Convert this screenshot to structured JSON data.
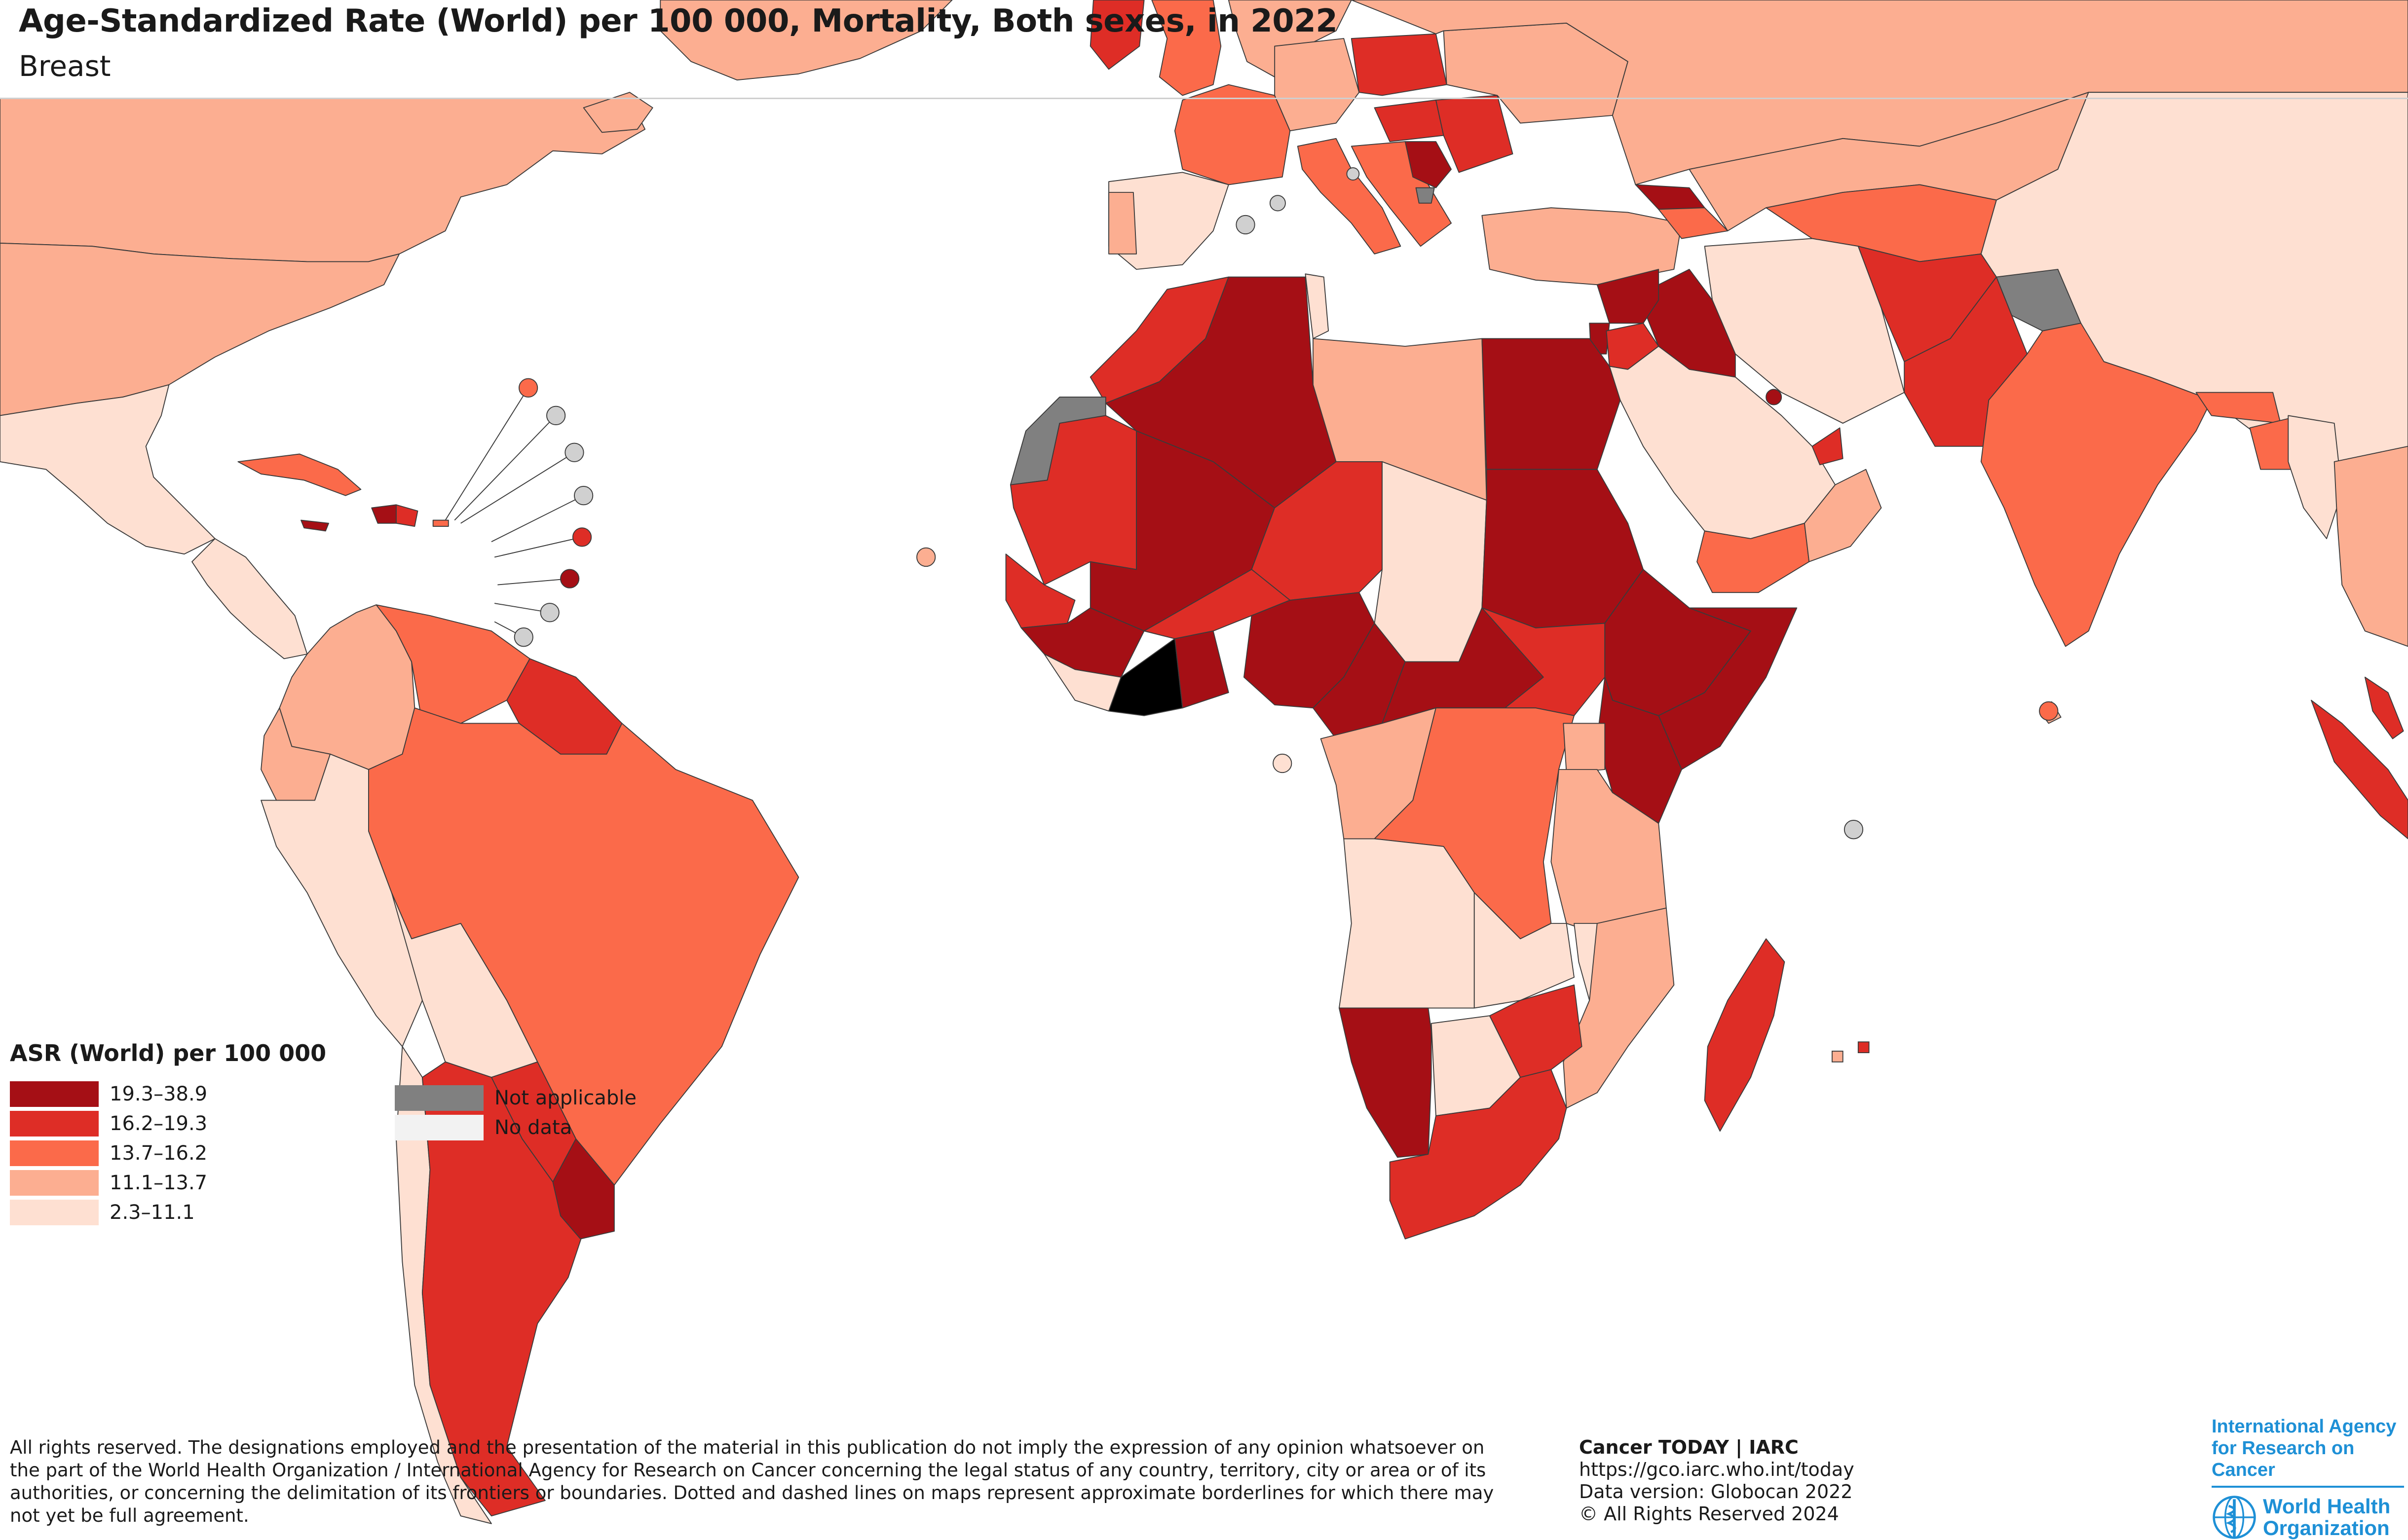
{
  "title": "Age-Standardized Rate (World) per 100 000, Mortality, Both sexes, in 2022",
  "subtitle": "Breast",
  "legend": {
    "title": "ASR (World) per 100 000",
    "classes": [
      {
        "label": "19.3–38.9",
        "color": "#a50f15"
      },
      {
        "label": "16.2–19.3",
        "color": "#de2d26"
      },
      {
        "label": "13.7–16.2",
        "color": "#fb6a4a"
      },
      {
        "label": "11.1–13.7",
        "color": "#fcae91"
      },
      {
        "label": "2.3–11.1",
        "color": "#fee0d2"
      }
    ],
    "special": [
      {
        "label": "Not applicable",
        "color": "#808080"
      },
      {
        "label": "No data",
        "color": "#f2f2f2"
      }
    ]
  },
  "small_territory_color": "#d0d0d0",
  "disclaimer": "All rights reserved. The designations employed and the presentation of the material in this publication do not imply the expression of any opinion whatsoever on the part of the World Health Organization / International Agency for Research on Cancer concerning the legal status of any country, territory, city or area or of its authorities, or concerning the delimitation of its frontiers or boundaries. Dotted and dashed lines on maps represent approximate borderlines for which there may not yet be full agreement.",
  "source": {
    "heading": "Cancer TODAY | IARC",
    "url": "https://gco.iarc.who.int/today",
    "version": "Data version: Globocan 2022",
    "copyright": "© All Rights Reserved 2024"
  },
  "logos": {
    "iarc": [
      "International Agency",
      "for Research on Cancer"
    ],
    "who": [
      "World Health",
      "Organization"
    ]
  },
  "regions": [
    {
      "name": "Canada",
      "cls": 3
    },
    {
      "name": "United States of America",
      "cls": 3
    },
    {
      "name": "Greenland",
      "cls": 3
    },
    {
      "name": "Mexico",
      "cls": 4
    },
    {
      "name": "Central America",
      "cls": 4
    },
    {
      "name": "Cuba",
      "cls": 2
    },
    {
      "name": "Haiti",
      "cls": 0
    },
    {
      "name": "Dominican Republic",
      "cls": 1
    },
    {
      "name": "Jamaica",
      "cls": 0
    },
    {
      "name": "Puerto Rico",
      "cls": 2
    },
    {
      "name": "Colombia",
      "cls": 3
    },
    {
      "name": "Venezuela",
      "cls": 2
    },
    {
      "name": "Guianas",
      "cls": 1
    },
    {
      "name": "Ecuador",
      "cls": 3
    },
    {
      "name": "Peru",
      "cls": 4
    },
    {
      "name": "Brazil",
      "cls": 2
    },
    {
      "name": "Bolivia",
      "cls": 4
    },
    {
      "name": "Paraguay",
      "cls": 1
    },
    {
      "name": "Chile",
      "cls": 4
    },
    {
      "name": "Argentina",
      "cls": 1
    },
    {
      "name": "Uruguay",
      "cls": 0
    },
    {
      "name": "Iceland",
      "cls": 3
    },
    {
      "name": "Ireland",
      "cls": 1
    },
    {
      "name": "United Kingdom",
      "cls": 2
    },
    {
      "name": "Scandinavia",
      "cls": 3
    },
    {
      "name": "France",
      "cls": 2
    },
    {
      "name": "Spain",
      "cls": 4
    },
    {
      "name": "Portugal",
      "cls": 3
    },
    {
      "name": "Germany",
      "cls": 3
    },
    {
      "name": "Poland",
      "cls": 1
    },
    {
      "name": "Italy",
      "cls": 2
    },
    {
      "name": "Balkans",
      "cls": 2
    },
    {
      "name": "Hungary",
      "cls": 1
    },
    {
      "name": "Romania",
      "cls": 1
    },
    {
      "name": "Serbia",
      "cls": 0
    },
    {
      "name": "Kosovo",
      "cls": 5
    },
    {
      "name": "Ukraine",
      "cls": 3
    },
    {
      "name": "Russian Federation",
      "cls": 3
    },
    {
      "name": "Turkey",
      "cls": 3
    },
    {
      "name": "Georgia",
      "cls": 0
    },
    {
      "name": "Armenia & Azerbaijan",
      "cls": 2
    },
    {
      "name": "Kazakhstan",
      "cls": 3
    },
    {
      "name": "Central Asia",
      "cls": 2
    },
    {
      "name": "Mongolia & China",
      "cls": 4
    },
    {
      "name": "Iran",
      "cls": 4
    },
    {
      "name": "Afghanistan",
      "cls": 1
    },
    {
      "name": "Pakistan",
      "cls": 1
    },
    {
      "name": "Kashmir",
      "cls": 5
    },
    {
      "name": "India",
      "cls": 2
    },
    {
      "name": "Nepal",
      "cls": 2
    },
    {
      "name": "Bangladesh",
      "cls": 2
    },
    {
      "name": "Myanmar",
      "cls": 4
    },
    {
      "name": "Southeast Asia",
      "cls": 3
    },
    {
      "name": "Malaysia",
      "cls": 1
    },
    {
      "name": "Sumatra",
      "cls": 1
    },
    {
      "name": "Sri Lanka",
      "cls": 3
    },
    {
      "name": "Iraq",
      "cls": 0
    },
    {
      "name": "Syria",
      "cls": 0
    },
    {
      "name": "Lebanon",
      "cls": 0
    },
    {
      "name": "Jordan",
      "cls": 1
    },
    {
      "name": "Saudi Arabia",
      "cls": 4
    },
    {
      "name": "Yemen",
      "cls": 2
    },
    {
      "name": "Oman",
      "cls": 3
    },
    {
      "name": "United Arab Emirates",
      "cls": 1
    },
    {
      "name": "Morocco",
      "cls": 1
    },
    {
      "name": "Western Sahara",
      "cls": 5
    },
    {
      "name": "Algeria",
      "cls": 0
    },
    {
      "name": "Tunisia",
      "cls": 4
    },
    {
      "name": "Libya",
      "cls": 3
    },
    {
      "name": "Egypt",
      "cls": 0
    },
    {
      "name": "Mauritania",
      "cls": 1
    },
    {
      "name": "Mali",
      "cls": 0
    },
    {
      "name": "Niger",
      "cls": 1
    },
    {
      "name": "Chad",
      "cls": 4
    },
    {
      "name": "Sudan",
      "cls": 0
    },
    {
      "name": "Senegal",
      "cls": 1
    },
    {
      "name": "Guinea",
      "cls": 0
    },
    {
      "name": "Sierra Leone & Liberia",
      "cls": 4
    },
    {
      "name": "Burkina Faso",
      "cls": 1
    },
    {
      "name": "Cote d'Ivoire",
      "cls": 0
    },
    {
      "name": "Ghana",
      "cls": 0
    },
    {
      "name": "Nigeria",
      "cls": 0
    },
    {
      "name": "Cameroon",
      "cls": 0
    },
    {
      "name": "Central African Republic",
      "cls": 0
    },
    {
      "name": "South Sudan",
      "cls": 1
    },
    {
      "name": "Ethiopia",
      "cls": 0
    },
    {
      "name": "Somalia",
      "cls": 0
    },
    {
      "name": "Kenya",
      "cls": 0
    },
    {
      "name": "Gabon & Congo",
      "cls": 3
    },
    {
      "name": "DR Congo",
      "cls": 2
    },
    {
      "name": "Uganda",
      "cls": 3
    },
    {
      "name": "Tanzania",
      "cls": 3
    },
    {
      "name": "Angola",
      "cls": 4
    },
    {
      "name": "Zambia",
      "cls": 4
    },
    {
      "name": "Malawi",
      "cls": 4
    },
    {
      "name": "Mozambique",
      "cls": 3
    },
    {
      "name": "Namibia",
      "cls": 0
    },
    {
      "name": "Botswana",
      "cls": 4
    },
    {
      "name": "Zimbabwe",
      "cls": 1
    },
    {
      "name": "South Africa",
      "cls": 1
    },
    {
      "name": "Madagascar",
      "cls": 1
    }
  ]
}
